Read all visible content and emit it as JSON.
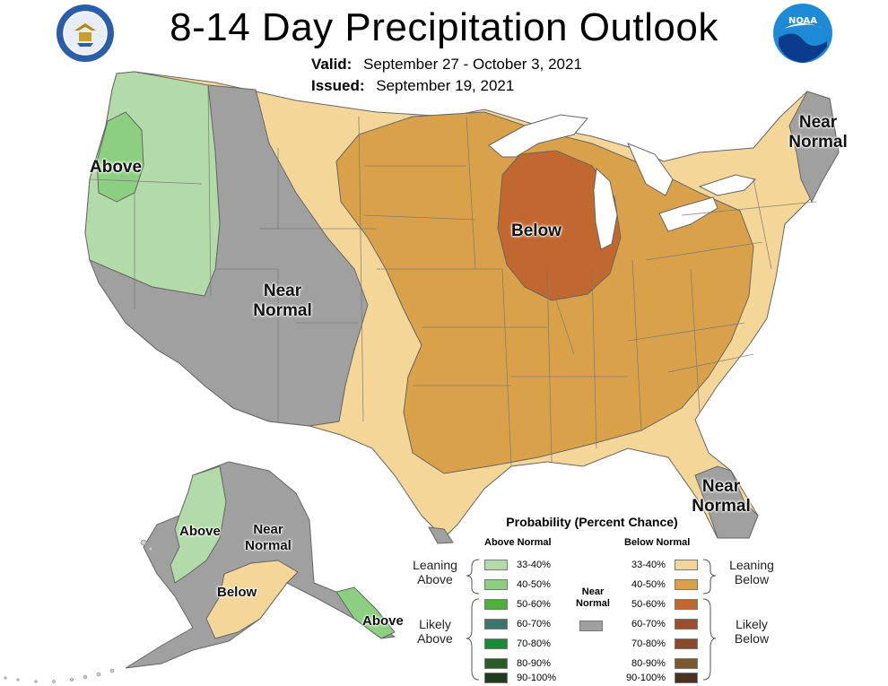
{
  "header": {
    "title": "8-14 Day Precipitation Outlook",
    "valid_label": "Valid:",
    "valid_value": "September 27 - October 3, 2021",
    "issued_label": "Issued:",
    "issued_value": "September 19, 2021"
  },
  "logos": {
    "left": "department-of-commerce-seal",
    "right": "noaa-logo",
    "right_text": "NOAA"
  },
  "regions": {
    "northwest": "Above",
    "west": "Near Normal",
    "midwest": "Below",
    "northeast": "Near Normal",
    "florida": "Near Normal",
    "alaska_west": "Above",
    "alaska_interior": "Near Normal",
    "alaska_south": "Below",
    "alaska_southeast": "Above"
  },
  "colors": {
    "near_normal": "#a0a0a0",
    "leaning_above_33_40": "#b3dbaa",
    "leaning_above_40_50": "#8ccf80",
    "leaning_below_33_40": "#f4d698",
    "leaning_below_40_50": "#d9a24a",
    "likely_below_50_60": "#c0682f"
  },
  "legend": {
    "title": "Probability (Percent Chance)",
    "above_header": "Above Normal",
    "below_header": "Below Normal",
    "near_label": "Near Normal",
    "leaning_above": "Leaning Above",
    "likely_above": "Likely Above",
    "leaning_below": "Leaning Below",
    "likely_below": "Likely Below",
    "above_items": [
      {
        "label": "33-40%",
        "color": "#b3dbaa"
      },
      {
        "label": "40-50%",
        "color": "#8ccf80"
      },
      {
        "label": "50-60%",
        "color": "#4fae3f"
      },
      {
        "label": "60-70%",
        "color": "#3e7568"
      },
      {
        "label": "70-80%",
        "color": "#1a8a3a"
      },
      {
        "label": "80-90%",
        "color": "#2a5a26"
      },
      {
        "label": "90-100%",
        "color": "#1e3d1c"
      }
    ],
    "below_items": [
      {
        "label": "33-40%",
        "color": "#f4d698"
      },
      {
        "label": "40-50%",
        "color": "#d9a24a"
      },
      {
        "label": "50-60%",
        "color": "#c0682f"
      },
      {
        "label": "60-70%",
        "color": "#9c4f2c"
      },
      {
        "label": "70-80%",
        "color": "#8a4a2c"
      },
      {
        "label": "80-90%",
        "color": "#7a5a2a"
      },
      {
        "label": "90-100%",
        "color": "#4a3222"
      }
    ],
    "near_color": "#a0a0a0"
  }
}
